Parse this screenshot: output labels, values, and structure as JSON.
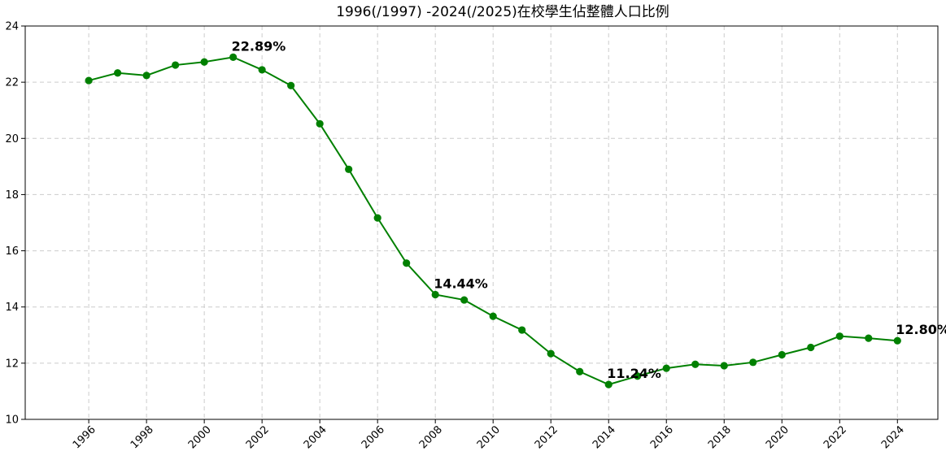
{
  "chart_data": {
    "type": "line",
    "title": "1996(/1997) -2024(/2025)在校學生佔整體人口比例",
    "xlabel": "",
    "ylabel": "",
    "xlim": [
      1993.8,
      2025.4
    ],
    "ylim": [
      10,
      24
    ],
    "grid": true,
    "line_color": "#008000",
    "x_ticks": [
      1996,
      1998,
      2000,
      2002,
      2004,
      2006,
      2008,
      2010,
      2012,
      2014,
      2016,
      2018,
      2020,
      2022,
      2024
    ],
    "y_ticks": [
      10,
      12,
      14,
      16,
      18,
      20,
      22,
      24
    ],
    "series": [
      {
        "x": [
          1996,
          1997,
          1998,
          1999,
          2000,
          2001,
          2002,
          2003,
          2004,
          2005,
          2006,
          2007,
          2008,
          2009,
          2010,
          2011,
          2012,
          2013,
          2014,
          2015,
          2016,
          2017,
          2018,
          2019,
          2020,
          2021,
          2022,
          2023,
          2024
        ],
        "values": [
          22.06,
          22.33,
          22.24,
          22.61,
          22.72,
          22.89,
          22.44,
          21.88,
          20.52,
          18.9,
          17.17,
          15.56,
          14.44,
          14.25,
          13.67,
          13.18,
          12.34,
          11.7,
          11.24,
          11.54,
          11.82,
          11.96,
          11.91,
          12.03,
          12.3,
          12.56,
          12.96,
          12.89,
          12.8
        ]
      }
    ],
    "annotations": [
      {
        "x": 2001,
        "y": 22.89,
        "text": "22.89%"
      },
      {
        "x": 2008,
        "y": 14.44,
        "text": "14.44%"
      },
      {
        "x": 2014,
        "y": 11.24,
        "text": "11.24%"
      },
      {
        "x": 2024,
        "y": 12.8,
        "text": "12.80%"
      }
    ]
  }
}
